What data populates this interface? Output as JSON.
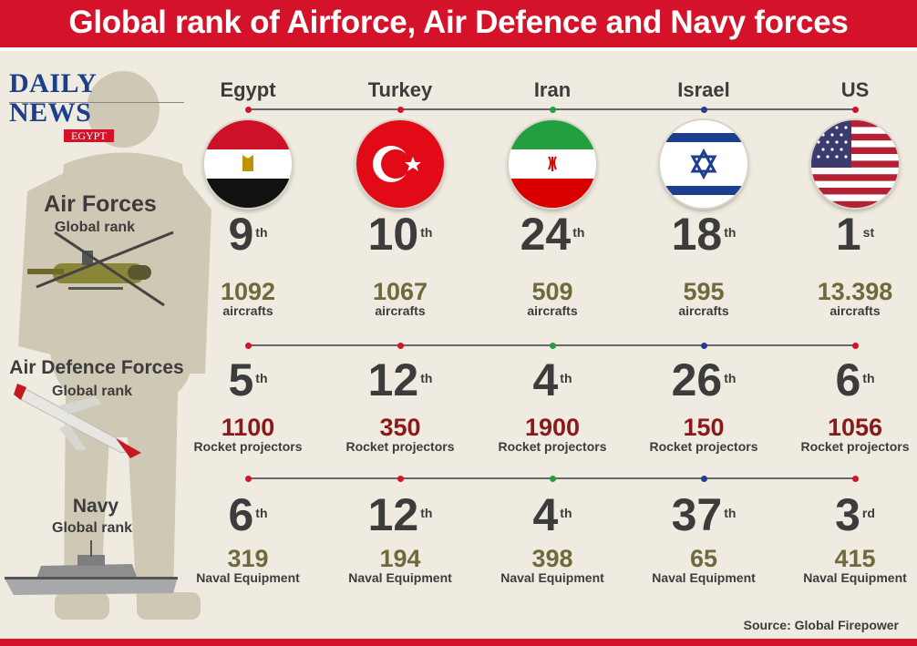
{
  "title": "Global rank of Airforce, Air Defence and Navy forces",
  "logo": {
    "main": "DAILY NEWS",
    "sub": "EGYPT"
  },
  "source": "Source: Global Firepower",
  "sections": {
    "air": {
      "title": "Air Forces",
      "sub": "Global rank",
      "unit": "aircrafts"
    },
    "defence": {
      "title": "Air Defence Forces",
      "sub": "Global rank",
      "unit": "Rocket projectors"
    },
    "navy": {
      "title": "Navy",
      "sub": "Global rank",
      "unit": "Naval Equipment"
    }
  },
  "countries": [
    {
      "name": "Egypt",
      "dot": "#d4122a",
      "air": {
        "rank": "9",
        "suffix": "th",
        "amount": "1092"
      },
      "defence": {
        "rank": "5",
        "suffix": "th",
        "amount": "1100"
      },
      "navy": {
        "rank": "6",
        "suffix": "th",
        "amount": "319"
      }
    },
    {
      "name": "Turkey",
      "dot": "#d4122a",
      "air": {
        "rank": "10",
        "suffix": "th",
        "amount": "1067"
      },
      "defence": {
        "rank": "12",
        "suffix": "th",
        "amount": "350"
      },
      "navy": {
        "rank": "12",
        "suffix": "th",
        "amount": "194"
      }
    },
    {
      "name": "Iran",
      "dot": "#239f40",
      "air": {
        "rank": "24",
        "suffix": "th",
        "amount": "509"
      },
      "defence": {
        "rank": "4",
        "suffix": "th",
        "amount": "1900"
      },
      "navy": {
        "rank": "4",
        "suffix": "th",
        "amount": "398"
      }
    },
    {
      "name": "Israel",
      "dot": "#1b3f8c",
      "air": {
        "rank": "18",
        "suffix": "th",
        "amount": "595"
      },
      "defence": {
        "rank": "26",
        "suffix": "th",
        "amount": "150"
      },
      "navy": {
        "rank": "37",
        "suffix": "th",
        "amount": "65"
      }
    },
    {
      "name": "US",
      "dot": "#d4122a",
      "air": {
        "rank": "1",
        "suffix": "st",
        "amount": "13.398"
      },
      "defence": {
        "rank": "6",
        "suffix": "th",
        "amount": "1056"
      },
      "navy": {
        "rank": "3",
        "suffix": "rd",
        "amount": "415"
      }
    }
  ]
}
